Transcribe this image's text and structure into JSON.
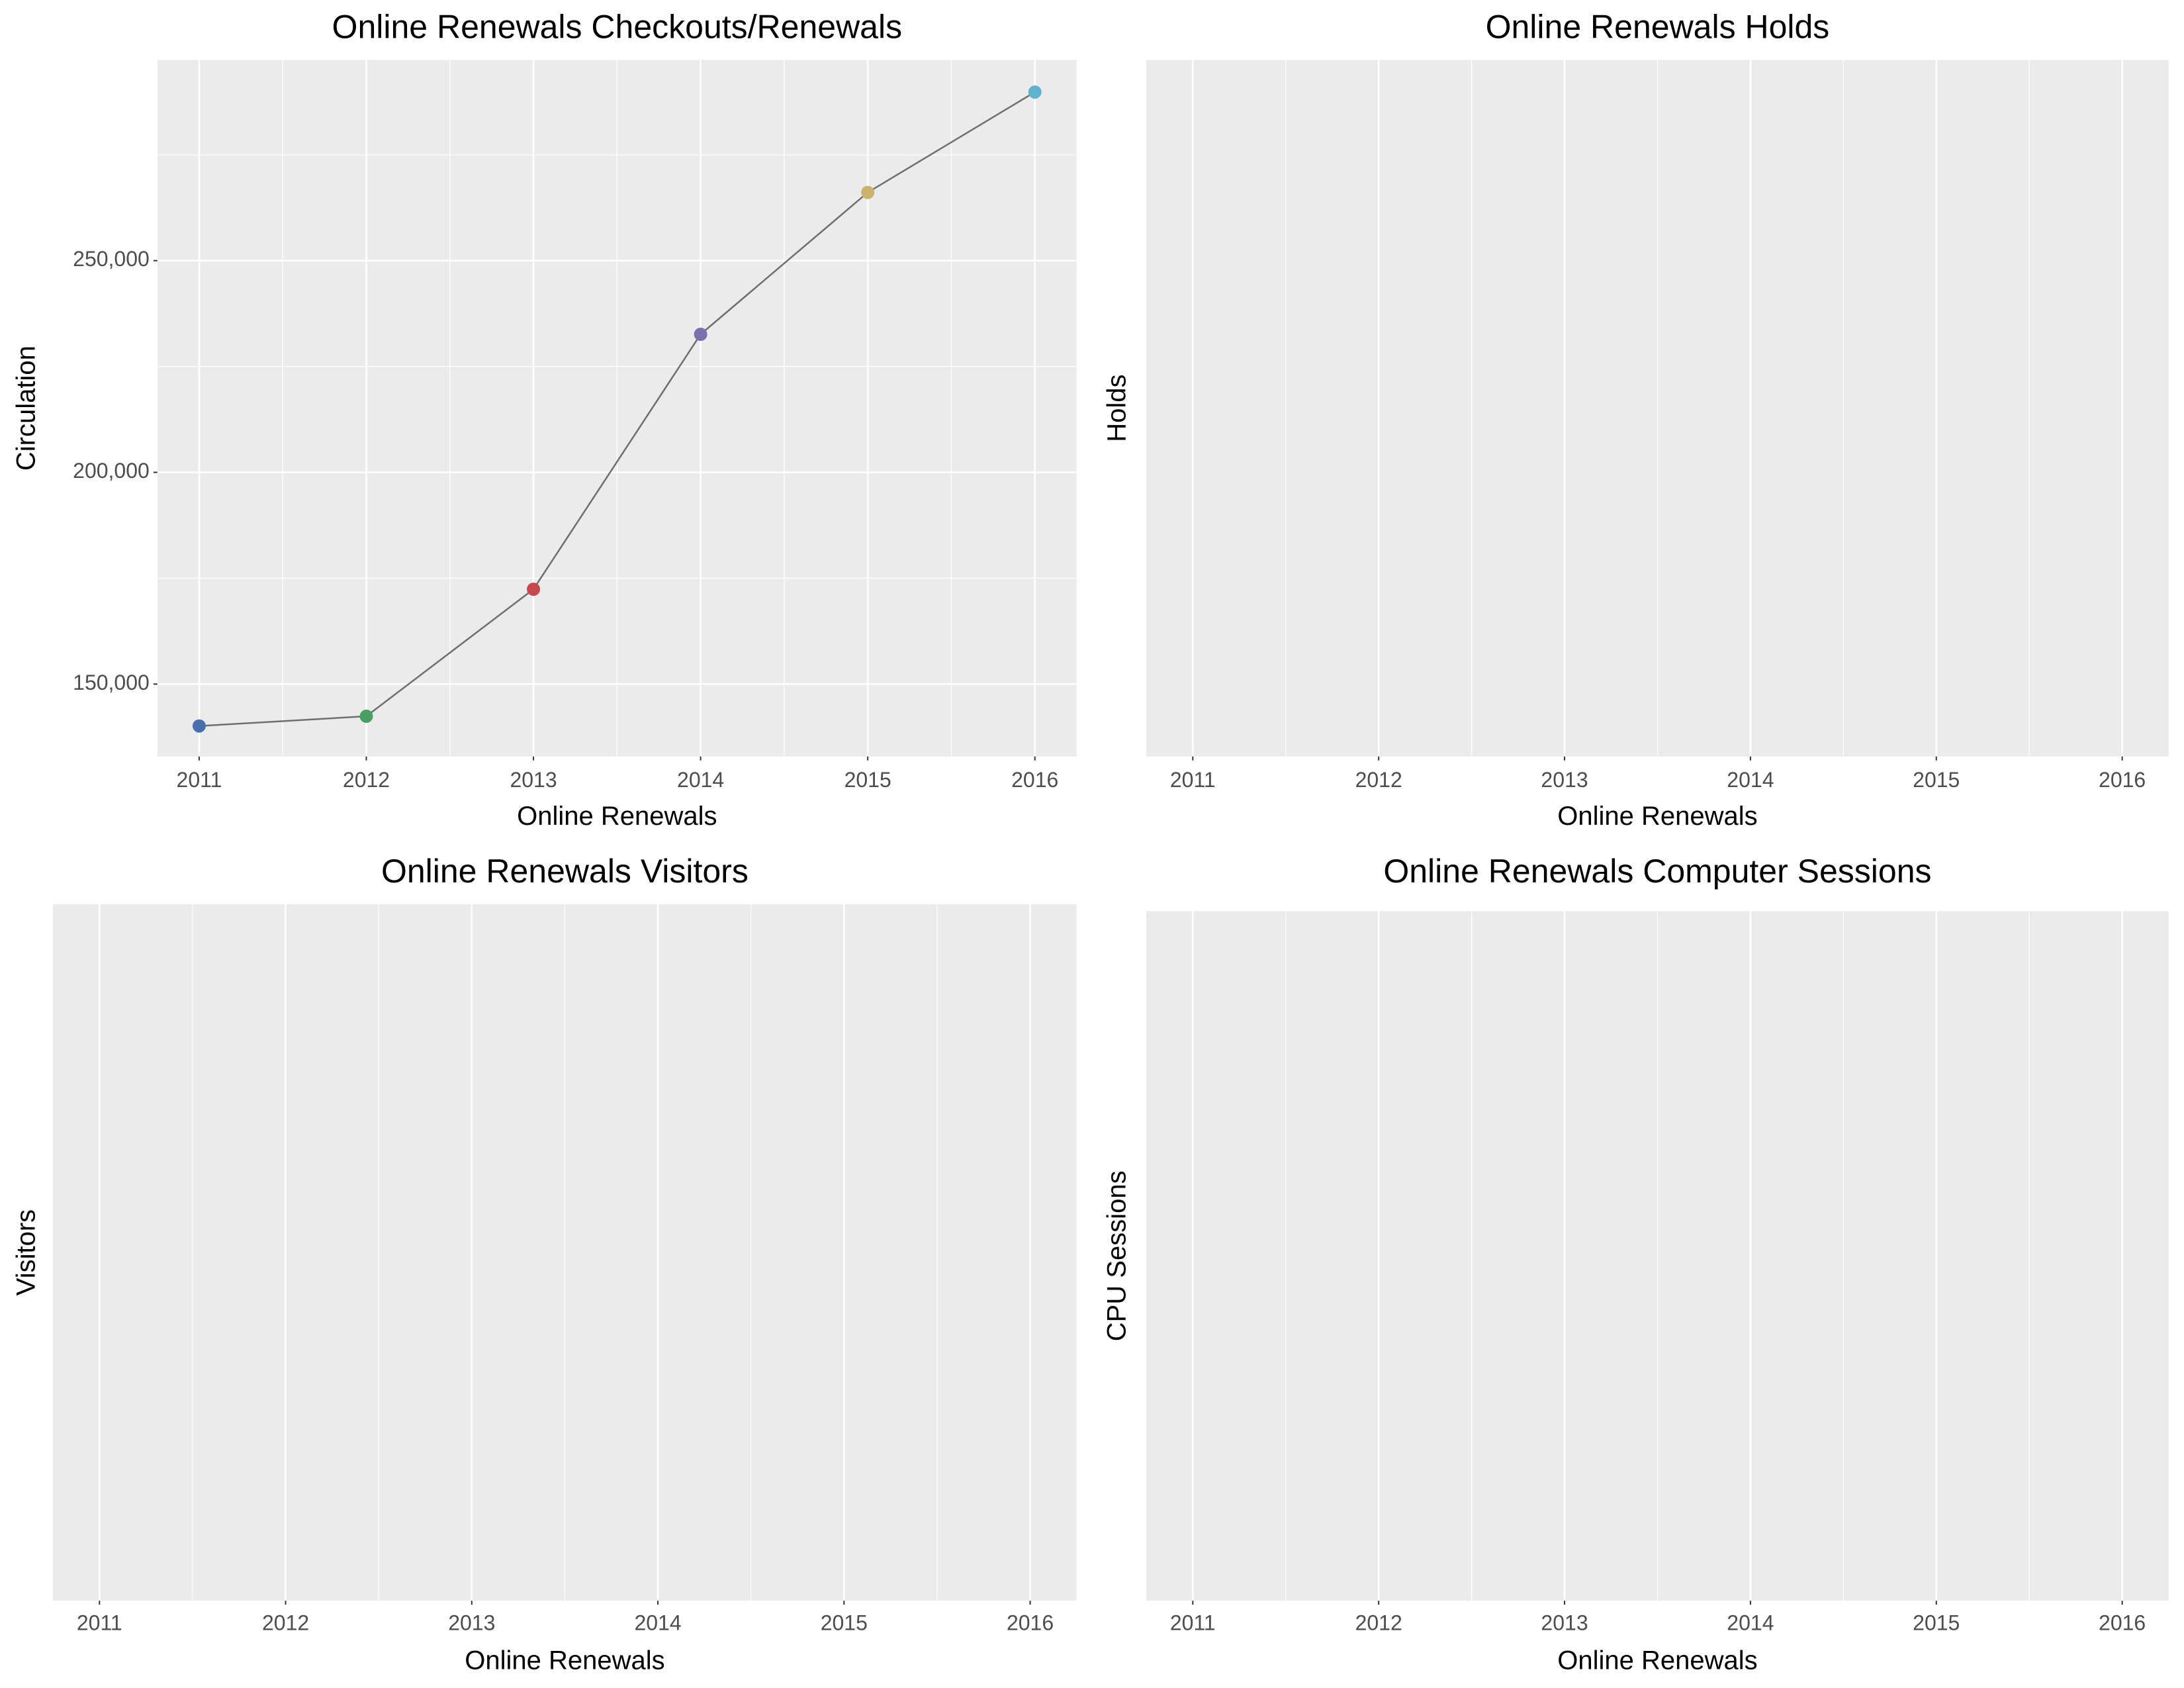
{
  "chart_data": [
    {
      "type": "line",
      "title": "Online Renewals Checkouts/Renewals",
      "x_label": "Online Renewals",
      "y_label": "Circulation",
      "x": [
        2011,
        2012,
        2013,
        2014,
        2015,
        2016
      ],
      "series": [
        {
          "values": [
            140100,
            142400,
            172400,
            232600,
            266100,
            289800
          ],
          "color": "#6e6e6e",
          "point_colors": [
            "#4a6fae",
            "#4aa060",
            "#c8474f",
            "#7b6fb0",
            "#c8b46a",
            "#5db3d0"
          ]
        }
      ],
      "xlim": [
        2010.75,
        2016.25
      ],
      "xticks": [
        2011,
        2012,
        2013,
        2014,
        2015,
        2016
      ],
      "ylim": [
        132900,
        297400
      ],
      "yticks": [
        {
          "value": 150000,
          "label": "150,000"
        },
        {
          "value": 200000,
          "label": "200,000"
        },
        {
          "value": 250000,
          "label": "250,000"
        }
      ],
      "grid": true,
      "minor_grid": true
    },
    {
      "type": "line",
      "title": "Online Renewals Holds",
      "x_label": "Online Renewals",
      "y_label": "Holds",
      "xlim": [
        2010.75,
        2016.25
      ],
      "xticks": [
        2011,
        2012,
        2013,
        2014,
        2015,
        2016
      ],
      "grid": true,
      "minor_grid": true
    },
    {
      "type": "line",
      "title": "Online Renewals Visitors",
      "x_label": "Online Renewals",
      "y_label": "Visitors",
      "xlim": [
        2010.75,
        2016.25
      ],
      "xticks": [
        2011,
        2012,
        2013,
        2014,
        2015,
        2016
      ],
      "grid": true,
      "minor_grid": true
    },
    {
      "type": "line",
      "title": "Online Renewals Computer Sessions",
      "x_label": "Online Renewals",
      "y_label": "CPU Sessions",
      "xlim": [
        2010.75,
        2016.25
      ],
      "xticks": [
        2011,
        2012,
        2013,
        2014,
        2015,
        2016
      ],
      "grid": true,
      "minor_grid": true
    }
  ]
}
